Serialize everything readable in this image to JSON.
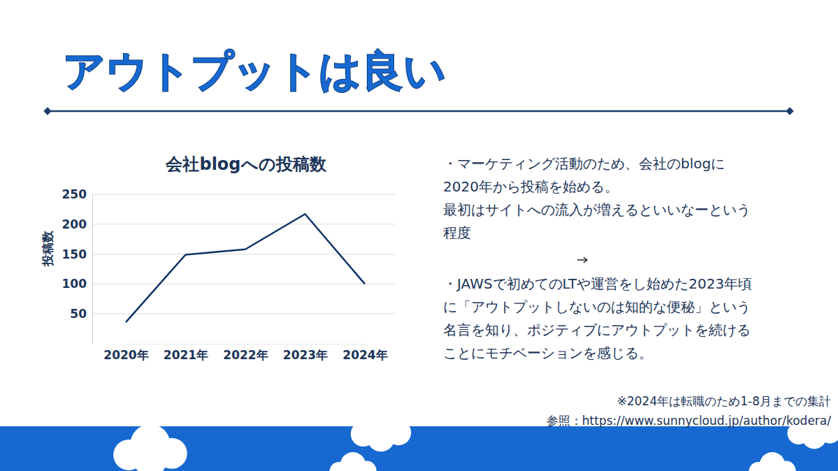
{
  "slide": {
    "title": "アウトプットは良い",
    "bullets": [
      [
        "・マーケティング活動のため、会社のblogに2020年から投稿を始める。",
        "最初はサイトへの流入が増えるといいなーという程度"
      ],
      [
        "・JAWSで初めてのLTや運営をし始めた2023年頃に「アウトプットしないのは知的な便秘」という名言を知り、ポジティブにアウトプットを続けることにモチベーションを感じる。"
      ]
    ],
    "note": "※2024年は転職のため1-8月までの集計",
    "reference": "参照：https://www.sunnycloud.jp/author/kodera/"
  },
  "chart_data": {
    "type": "line",
    "title": "会社blogへの投稿数",
    "ylabel": "投稿数",
    "categories": [
      "2020年",
      "2021年",
      "2022年",
      "2023年",
      "2024年"
    ],
    "values": [
      36,
      149,
      158,
      217,
      100
    ],
    "color": "#0b3266",
    "ylim": [
      0,
      250
    ],
    "yticks": [
      50,
      100,
      150,
      200,
      250
    ],
    "grid": true
  }
}
